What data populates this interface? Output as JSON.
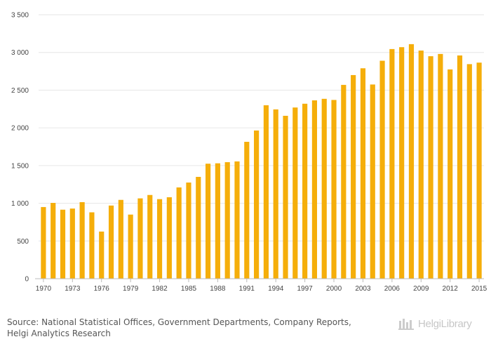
{
  "chart_data": {
    "type": "bar",
    "title": "",
    "xlabel": "",
    "ylabel": "",
    "ylim": [
      0,
      3500
    ],
    "yticks": [
      0,
      500,
      1000,
      1500,
      2000,
      2500,
      3000,
      3500
    ],
    "ytick_labels": [
      "0",
      "500",
      "1 000",
      "1 500",
      "2 000",
      "2 500",
      "3 000",
      "3 500"
    ],
    "categories": [
      1970,
      1971,
      1972,
      1973,
      1974,
      1975,
      1976,
      1977,
      1978,
      1979,
      1980,
      1981,
      1982,
      1983,
      1984,
      1985,
      1986,
      1987,
      1988,
      1989,
      1990,
      1991,
      1992,
      1993,
      1994,
      1995,
      1996,
      1997,
      1998,
      1999,
      2000,
      2001,
      2002,
      2003,
      2004,
      2005,
      2006,
      2007,
      2008,
      2009,
      2010,
      2011,
      2012,
      2013,
      2014,
      2015
    ],
    "xtick_labels": [
      "1970",
      "1973",
      "1976",
      "1979",
      "1982",
      "1985",
      "1988",
      "1991",
      "1994",
      "1997",
      "2000",
      "2003",
      "2006",
      "2009",
      "2012",
      "2015"
    ],
    "values": [
      950,
      1005,
      915,
      930,
      1015,
      880,
      625,
      970,
      1045,
      850,
      1065,
      1110,
      1055,
      1080,
      1210,
      1275,
      1350,
      1525,
      1530,
      1545,
      1555,
      1815,
      1965,
      2300,
      2245,
      2160,
      2270,
      2320,
      2365,
      2385,
      2370,
      2570,
      2700,
      2790,
      2575,
      2890,
      3045,
      3070,
      3110,
      3025,
      2950,
      2980,
      2775,
      2960,
      2845,
      2865
    ],
    "bar_color": "#f5ae0a",
    "grid": true
  },
  "footer": {
    "source_line1": "Source: National Statistical Offices, Government Departments, Company Reports,",
    "source_line2": "Helgi Analytics Research",
    "brand": "HelgiLibrary",
    "brand_color": "#bdbdbd"
  }
}
